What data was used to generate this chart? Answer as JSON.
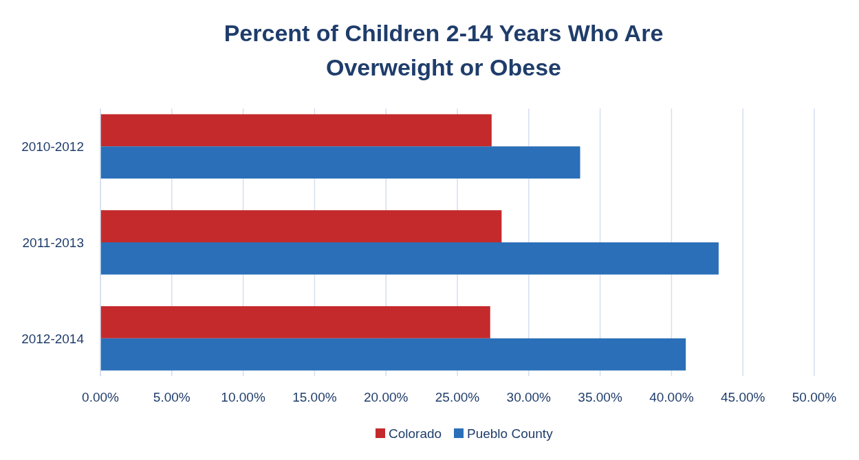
{
  "chart_data": {
    "type": "bar",
    "orientation": "horizontal",
    "title": "Percent of Children 2-14 Years Who Are Overweight or Obese",
    "categories": [
      "2010-2012",
      "2011-2013",
      "2012-2014"
    ],
    "series": [
      {
        "name": "Colorado",
        "color": "#c42a2c",
        "values": [
          27.4,
          28.1,
          27.3
        ]
      },
      {
        "name": "Pueblo County",
        "color": "#2a6fb8",
        "values": [
          33.6,
          43.3,
          41.0
        ]
      }
    ],
    "xlim": [
      0,
      50
    ],
    "xticks": [
      {
        "value": 0,
        "label": "0.00%"
      },
      {
        "value": 5,
        "label": "5.00%"
      },
      {
        "value": 10,
        "label": "10.00%"
      },
      {
        "value": 15,
        "label": "15.00%"
      },
      {
        "value": 20,
        "label": "20.00%"
      },
      {
        "value": 25,
        "label": "25.00%"
      },
      {
        "value": 30,
        "label": "30.00%"
      },
      {
        "value": 35,
        "label": "35.00%"
      },
      {
        "value": 40,
        "label": "40.00%"
      },
      {
        "value": 45,
        "label": "45.00%"
      },
      {
        "value": 50,
        "label": "50.00%"
      }
    ],
    "grid": "x",
    "legend": "bottom"
  }
}
